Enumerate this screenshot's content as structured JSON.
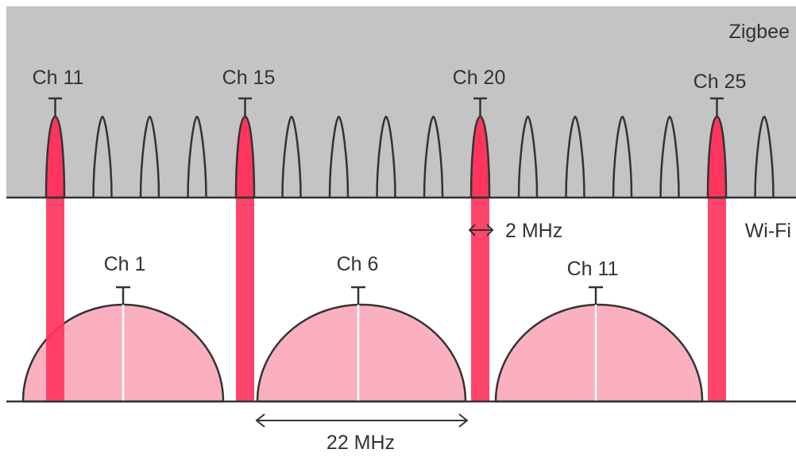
{
  "zigbee": {
    "band_label": "Zigbee",
    "channels": [
      "11",
      "12",
      "13",
      "14",
      "15",
      "16",
      "17",
      "18",
      "19",
      "20",
      "21",
      "22",
      "23",
      "24",
      "25",
      "26"
    ],
    "highlighted": [
      {
        "channel": "11",
        "label": "Ch 11"
      },
      {
        "channel": "15",
        "label": "Ch 15"
      },
      {
        "channel": "20",
        "label": "Ch 20"
      },
      {
        "channel": "25",
        "label": "Ch 25"
      }
    ],
    "channel_width_label": "2 MHz"
  },
  "wifi": {
    "band_label": "Wi-Fi",
    "channels": [
      {
        "label": "Ch 1"
      },
      {
        "label": "Ch 6"
      },
      {
        "label": "Ch 11"
      }
    ],
    "channel_width_label": "22 MHz"
  },
  "colors": {
    "zigbee_band": "#c4c4c4",
    "highlight": "#ff355e",
    "wifi_fill": "#fbb0c0",
    "line": "#333333"
  }
}
